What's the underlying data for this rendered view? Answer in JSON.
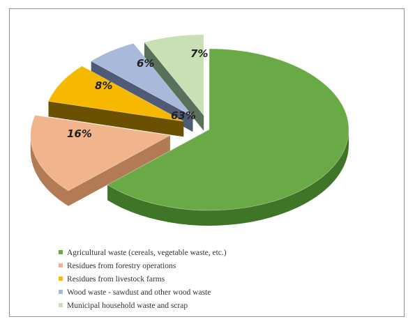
{
  "chart_data": {
    "type": "pie",
    "title": "",
    "style": "3d-exploded",
    "slices": [
      {
        "label": "Agricultural waste (cereals, vegetable waste, etc.)",
        "value": 63,
        "value_label": "63%",
        "color": "#6aaa46",
        "side_color": "#3f7527"
      },
      {
        "label": "Residues from forestry operations",
        "value": 16,
        "value_label": "16%",
        "color": "#f2b48d",
        "side_color": "#b27a55"
      },
      {
        "label": "Residues from livestock farms",
        "value": 8,
        "value_label": "8%",
        "color": "#f7b900",
        "side_color": "#6a5000"
      },
      {
        "label": "Wood waste - sawdust and other wood waste",
        "value": 6,
        "value_label": "6%",
        "color": "#a9b9db",
        "side_color": "#4f5b76"
      },
      {
        "label": "Municipal household waste and scrap",
        "value": 7,
        "value_label": "7%",
        "color": "#c8e0b4",
        "side_color": "#59705a"
      }
    ],
    "legend_position": "bottom"
  }
}
